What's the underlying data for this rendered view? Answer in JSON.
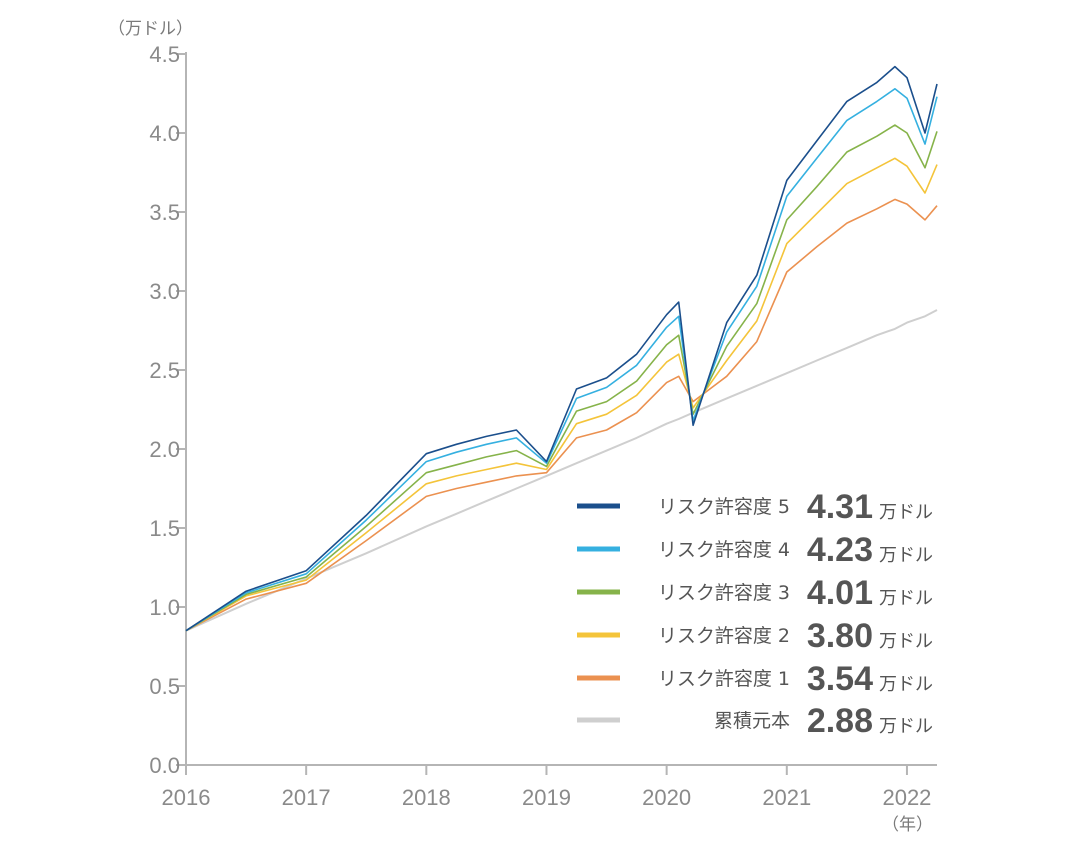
{
  "chart_data": {
    "type": "line",
    "y_unit": "（万ドル）",
    "x_unit": "（年）",
    "ylim": [
      0,
      4.5
    ],
    "xlim": [
      2016,
      2022.25
    ],
    "y_ticks": [
      "0.0",
      "0.5",
      "1.0",
      "1.5",
      "2.0",
      "2.5",
      "3.0",
      "3.5",
      "4.0",
      "4.5"
    ],
    "x_ticks": [
      "2016",
      "2017",
      "2018",
      "2019",
      "2020",
      "2021",
      "2022"
    ],
    "grid": false,
    "legend_position": "bottom-right",
    "x": [
      2016.0,
      2016.5,
      2017.0,
      2017.5,
      2018.0,
      2018.25,
      2018.5,
      2018.75,
      2019.0,
      2019.25,
      2019.5,
      2019.75,
      2020.0,
      2020.1,
      2020.22,
      2020.5,
      2020.75,
      2021.0,
      2021.25,
      2021.5,
      2021.75,
      2021.9,
      2022.0,
      2022.15,
      2022.25
    ],
    "series": [
      {
        "name": "リスク許容度 5",
        "color": "#1b4f8c",
        "final": "4.31",
        "values": [
          0.85,
          1.1,
          1.23,
          1.58,
          1.97,
          2.03,
          2.08,
          2.12,
          1.92,
          2.38,
          2.45,
          2.6,
          2.85,
          2.93,
          2.15,
          2.8,
          3.1,
          3.7,
          3.95,
          4.2,
          4.32,
          4.42,
          4.35,
          4.0,
          4.31
        ]
      },
      {
        "name": "リスク許容度 4",
        "color": "#35b0e0",
        "final": "4.23",
        "values": [
          0.85,
          1.09,
          1.21,
          1.55,
          1.92,
          1.98,
          2.03,
          2.07,
          1.91,
          2.32,
          2.39,
          2.53,
          2.77,
          2.84,
          2.18,
          2.74,
          3.03,
          3.6,
          3.84,
          4.08,
          4.2,
          4.28,
          4.22,
          3.93,
          4.23
        ]
      },
      {
        "name": "リスク許容度 3",
        "color": "#86b34a",
        "final": "4.01",
        "values": [
          0.85,
          1.08,
          1.19,
          1.51,
          1.85,
          1.9,
          1.95,
          1.99,
          1.89,
          2.24,
          2.3,
          2.43,
          2.66,
          2.72,
          2.22,
          2.65,
          2.92,
          3.45,
          3.66,
          3.88,
          3.98,
          4.05,
          4.0,
          3.78,
          4.01
        ]
      },
      {
        "name": "リスク許容度 2",
        "color": "#f4c43a",
        "final": "3.80",
        "values": [
          0.85,
          1.07,
          1.17,
          1.47,
          1.78,
          1.83,
          1.87,
          1.91,
          1.87,
          2.16,
          2.22,
          2.34,
          2.55,
          2.6,
          2.26,
          2.56,
          2.81,
          3.3,
          3.49,
          3.68,
          3.78,
          3.84,
          3.79,
          3.62,
          3.8
        ]
      },
      {
        "name": "リスク許容度 1",
        "color": "#eb9150",
        "final": "3.54",
        "values": [
          0.85,
          1.05,
          1.15,
          1.42,
          1.7,
          1.75,
          1.79,
          1.83,
          1.85,
          2.07,
          2.12,
          2.23,
          2.42,
          2.46,
          2.3,
          2.46,
          2.68,
          3.12,
          3.28,
          3.43,
          3.52,
          3.58,
          3.55,
          3.45,
          3.54
        ]
      },
      {
        "name": "累積元本",
        "color": "#cfcfcf",
        "final": "2.88",
        "values": [
          0.85,
          1.02,
          1.18,
          1.34,
          1.51,
          1.59,
          1.67,
          1.75,
          1.83,
          1.91,
          1.99,
          2.07,
          2.16,
          2.19,
          2.23,
          2.32,
          2.4,
          2.48,
          2.56,
          2.64,
          2.72,
          2.76,
          2.8,
          2.84,
          2.88
        ]
      }
    ],
    "legend_unit": "万ドル"
  }
}
